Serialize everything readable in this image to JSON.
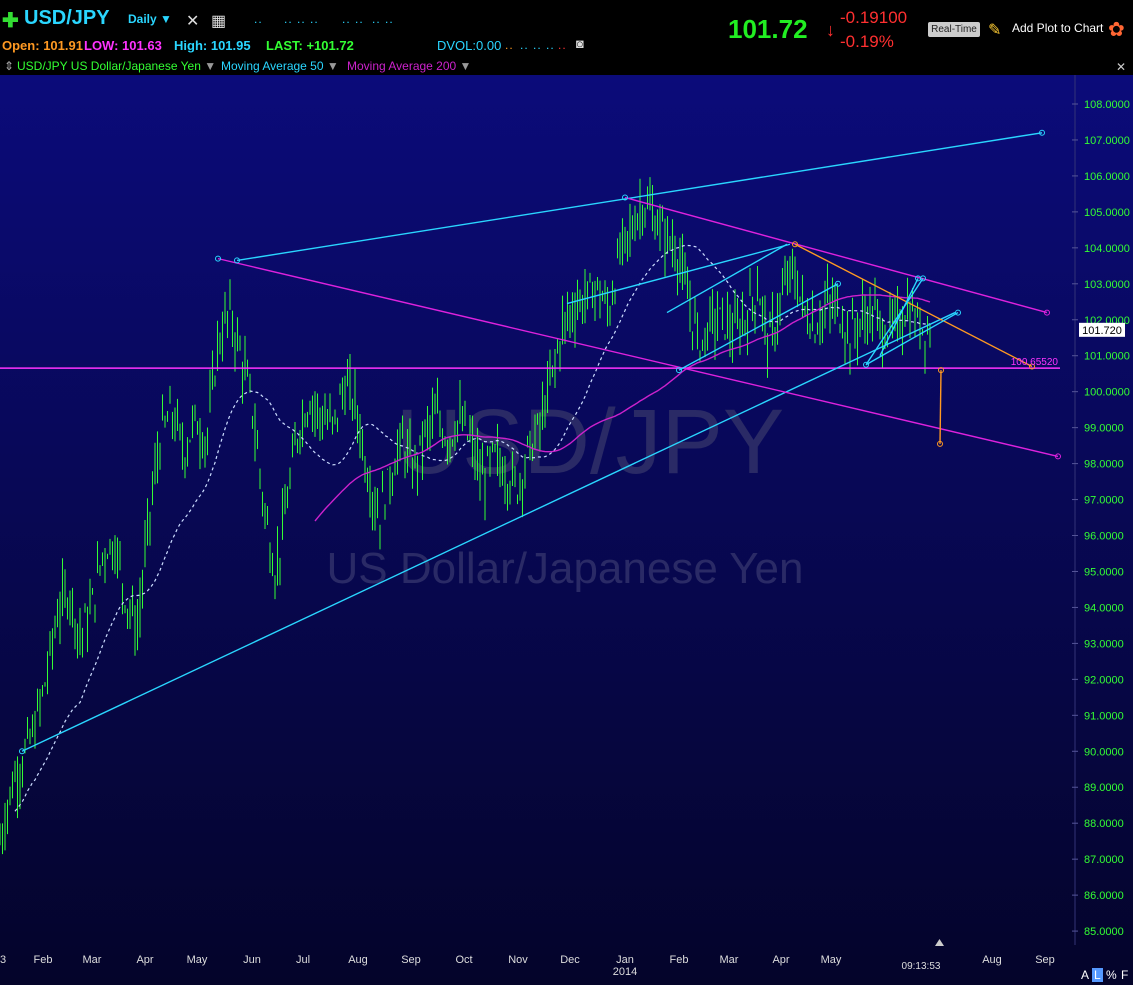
{
  "toolbar": {
    "symbol": "USD/JPY",
    "period": "Daily",
    "last_price": "101.72",
    "change": "-0.19100",
    "change_pct": "-0.19%",
    "realtime_label": "Real-Time",
    "add_plot_label": "Add Plot to Chart"
  },
  "quote": {
    "open_label": "Open:",
    "open": "101.91",
    "low_label": "LOW:",
    "low": "101.63",
    "high_label": "High:",
    "high": "101.95",
    "last_label": "LAST:",
    "last": "+101.72",
    "dvol_label": "DVOL:",
    "dvol": "0.00"
  },
  "legend": {
    "instrument": "USD/JPY US Dollar/Japanese Yen",
    "ma50": "Moving Average 50",
    "ma200": "Moving Average 200"
  },
  "watermark": {
    "symbol": "USD/JPY",
    "name": "US Dollar/Japanese Yen"
  },
  "corner": {
    "a": "A",
    "l": "L",
    "pct": "%",
    "f": "F"
  },
  "colors": {
    "background": "#0a0a3a",
    "bars": "#33ff33",
    "cyan": "#2ad6ff",
    "magenta": "#dd22dd",
    "orange": "#ff9922",
    "down": "#ff3030"
  },
  "chart_data": {
    "type": "line",
    "title": "",
    "ylim": [
      84.7,
      108.8
    ],
    "y_ticks": [
      85,
      86,
      87,
      88,
      89,
      90,
      91,
      92,
      93,
      94,
      95,
      96,
      97,
      98,
      99,
      100,
      101,
      102,
      103,
      104,
      105,
      106,
      107,
      108
    ],
    "x_labels": [
      "3",
      "Feb",
      "Mar",
      "Apr",
      "May",
      "Jun",
      "Jul",
      "Aug",
      "Sep",
      "Oct",
      "Nov",
      "Dec",
      "Jan",
      "Feb",
      "Mar",
      "Apr",
      "May",
      "Aug",
      "Sep"
    ],
    "x_sublabel": "2014",
    "time_label": "09:13:53",
    "last_price_label": "101.720",
    "hline_label": "100.65520",
    "hline_value": 100.6552,
    "price_series": {
      "name": "USD/JPY",
      "values": [
        87.5,
        89.0,
        89.8,
        90.6,
        92.0,
        93.8,
        94.5,
        93.2,
        94.0,
        95.6,
        95.8,
        94.2,
        93.4,
        96.5,
        98.8,
        99.4,
        98.3,
        99.2,
        98.6,
        101.4,
        102.2,
        101.0,
        99.5,
        96.8,
        94.9,
        96.9,
        99.0,
        99.8,
        99.3,
        99.0,
        100.2,
        99.6,
        97.8,
        96.5,
        97.7,
        98.6,
        97.8,
        98.8,
        99.3,
        98.7,
        99.2,
        98.6,
        97.5,
        98.2,
        97.8,
        97.3,
        98.3,
        99.0,
        100.3,
        101.8,
        102.4,
        102.6,
        102.9,
        102.2,
        103.8,
        104.5,
        105.3,
        104.8,
        104.3,
        103.9,
        102.4,
        101.3,
        102.0,
        102.0,
        101.6,
        102.1,
        102.9,
        101.3,
        102.5,
        103.4,
        102.3,
        101.8,
        102.4,
        102.3,
        101.5,
        102.0,
        102.2,
        101.7,
        101.8,
        102.3,
        101.9,
        101.72
      ]
    },
    "series": [
      {
        "name": "Moving Average 50"
      },
      {
        "name": "Moving Average 200"
      }
    ]
  }
}
